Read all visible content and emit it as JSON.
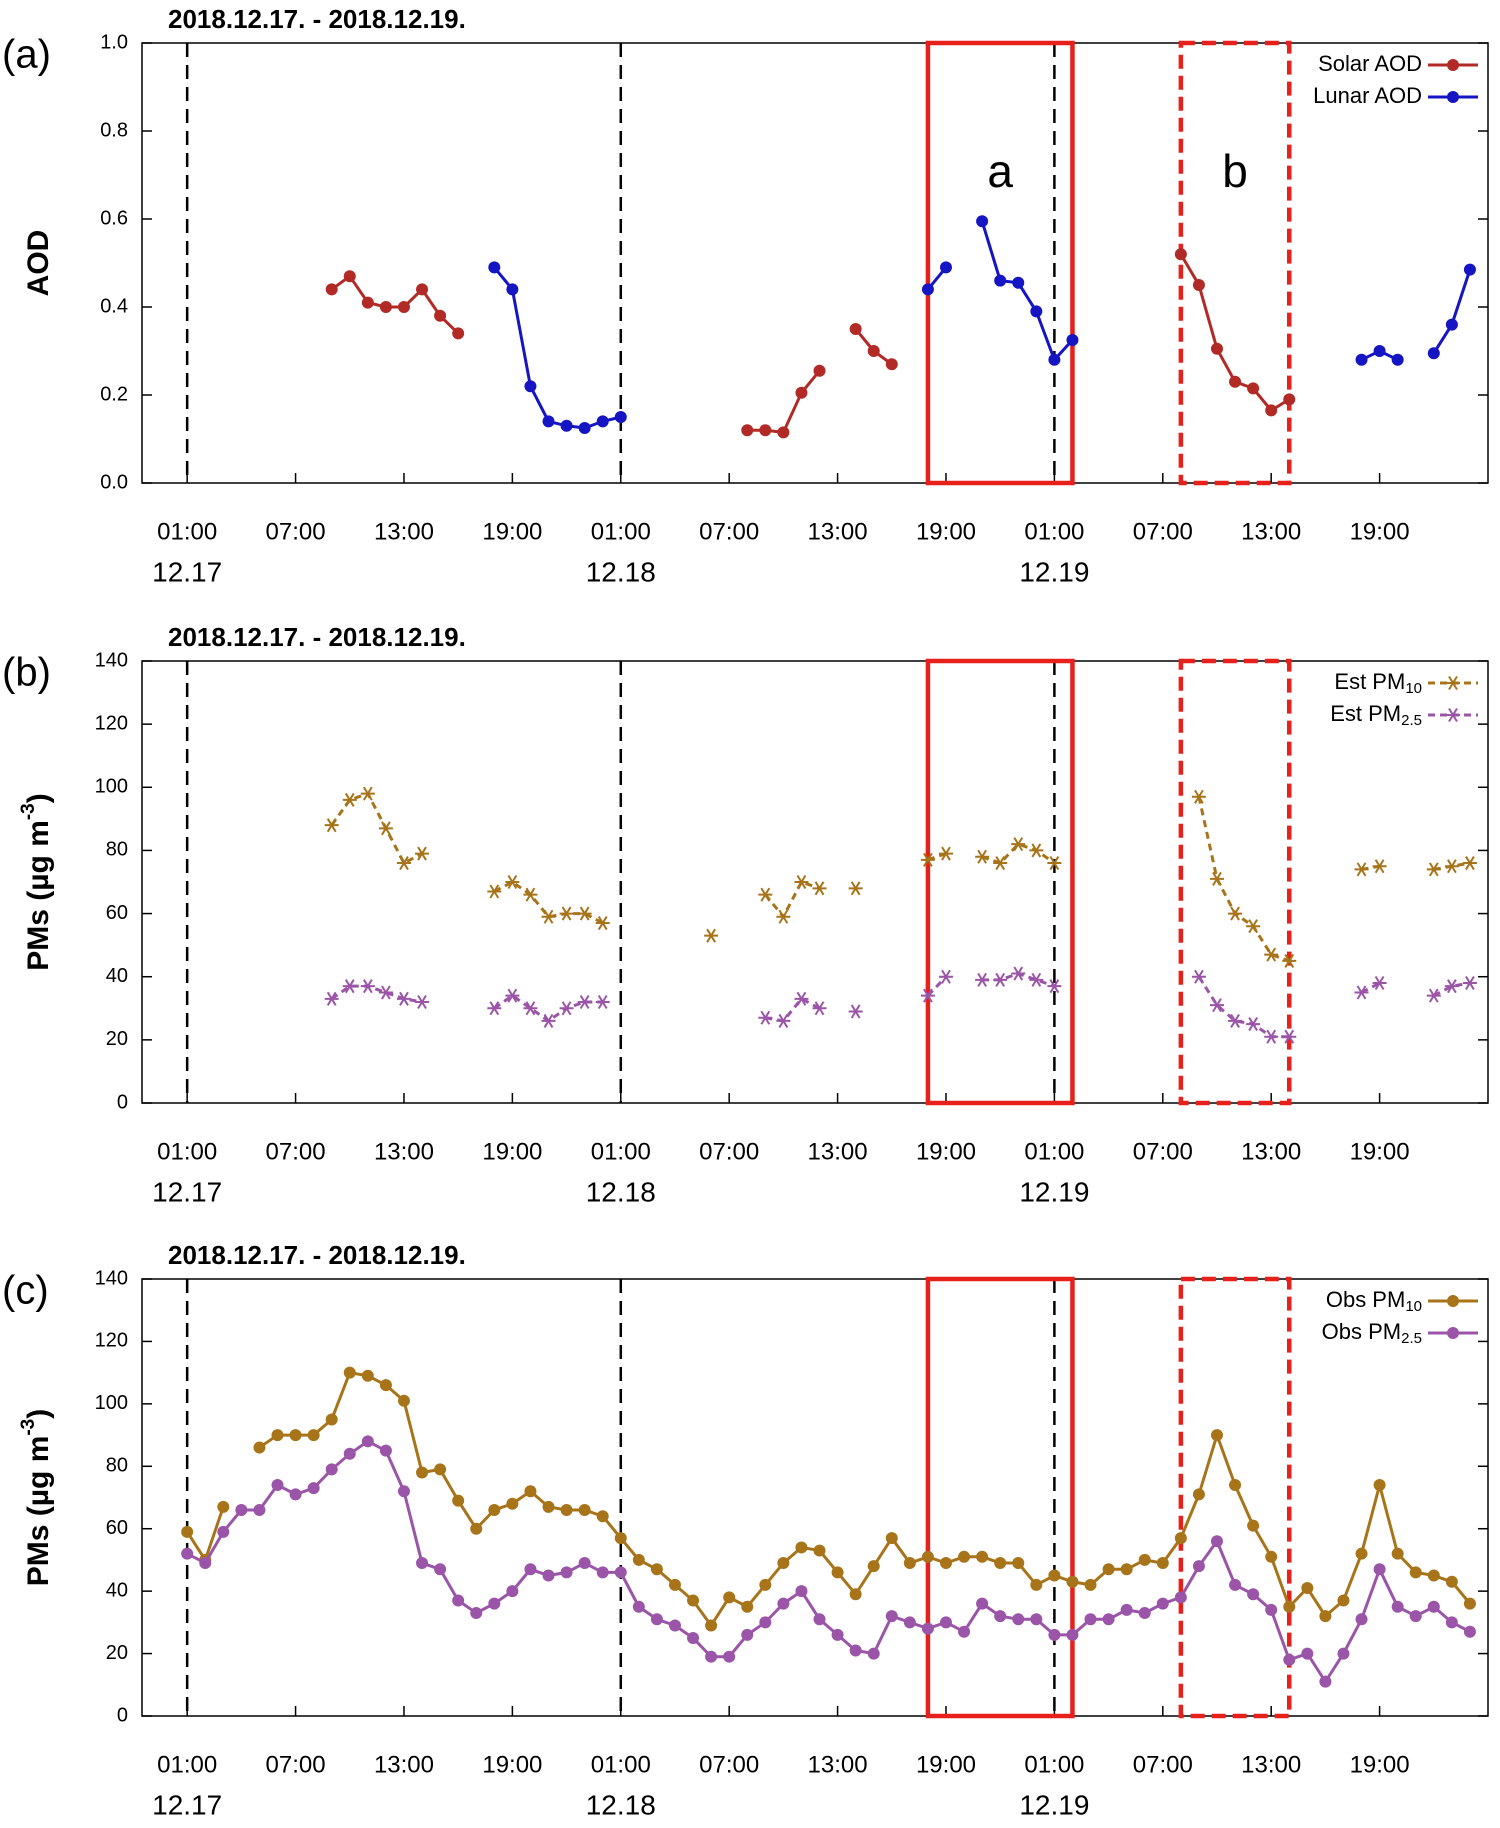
{
  "chart_data": [
    {
      "type": "line",
      "panel_label": "(a)",
      "title": "2018.12.17. - 2018.12.19.",
      "y_label": "AOD",
      "xlim": [
        -1.5,
        73
      ],
      "ylim": [
        0,
        1
      ],
      "yticks": [
        {
          "value": 0,
          "label": "0.0"
        },
        0.2,
        0.4,
        0.6,
        0.8,
        {
          "value": 1,
          "label": "1.0"
        }
      ],
      "xticks": [
        {
          "value": 1,
          "label": "01:00"
        },
        {
          "value": 7,
          "label": "07:00"
        },
        {
          "value": 13,
          "label": "13:00"
        },
        {
          "value": 19,
          "label": "19:00"
        },
        {
          "value": 25,
          "label": "01:00"
        },
        {
          "value": 31,
          "label": "07:00"
        },
        {
          "value": 37,
          "label": "13:00"
        },
        {
          "value": 43,
          "label": "19:00"
        },
        {
          "value": 49,
          "label": "01:00"
        },
        {
          "value": 55,
          "label": "07:00"
        },
        {
          "value": 61,
          "label": "13:00"
        },
        {
          "value": 67,
          "label": "19:00"
        }
      ],
      "date_ticks": [
        {
          "value": 1,
          "label": "12.17"
        },
        {
          "value": 25,
          "label": "12.18"
        },
        {
          "value": 49,
          "label": "12.19"
        }
      ],
      "boxes": [
        {
          "x": [
            42,
            50
          ],
          "style": "solid",
          "label": "a"
        },
        {
          "x": [
            56,
            62
          ],
          "style": "dashed",
          "label": "b"
        }
      ],
      "legend": "upper right",
      "series": [
        {
          "name": "Solar AOD",
          "color": "#b22a26",
          "marker": "circle",
          "dashed": false,
          "x": [
            9,
            10,
            11,
            12,
            13,
            14,
            15,
            16,
            17,
            32,
            33,
            34,
            35,
            36,
            37,
            38,
            39,
            40,
            41,
            56,
            57,
            58,
            59,
            60,
            61,
            62
          ],
          "values": [
            0.44,
            0.47,
            0.41,
            0.4,
            0.4,
            0.44,
            0.38,
            0.34,
            null,
            0.12,
            0.12,
            0.115,
            0.205,
            0.255,
            null,
            0.35,
            0.3,
            0.27,
            null,
            0.52,
            0.45,
            0.305,
            0.23,
            0.215,
            0.165,
            0.19
          ]
        },
        {
          "name": "Lunar AOD",
          "color": "#1515c4",
          "marker": "circle",
          "dashed": false,
          "x": [
            18,
            19,
            20,
            21,
            22,
            23,
            24,
            25,
            26,
            42,
            43,
            44,
            45,
            46,
            47,
            48,
            49,
            50,
            51,
            66,
            67,
            68,
            69,
            70,
            71,
            72
          ],
          "values": [
            0.49,
            0.44,
            0.22,
            0.14,
            0.13,
            0.125,
            0.14,
            0.15,
            null,
            0.44,
            0.49,
            null,
            0.595,
            0.46,
            0.455,
            0.39,
            0.28,
            0.325,
            null,
            0.28,
            0.3,
            0.28,
            null,
            0.295,
            0.36,
            0.485
          ]
        }
      ]
    },
    {
      "type": "line",
      "panel_label": "(b)",
      "title": "2018.12.17. - 2018.12.19.",
      "y_label": {
        "text": "PMs (µg m",
        "sup": "-3",
        "end": ")"
      },
      "xlim": [
        -1.5,
        73
      ],
      "ylim": [
        0,
        140
      ],
      "yticks": [
        0,
        20,
        40,
        60,
        80,
        100,
        120,
        140
      ],
      "xticks": [
        {
          "value": 1,
          "label": "01:00"
        },
        {
          "value": 7,
          "label": "07:00"
        },
        {
          "value": 13,
          "label": "13:00"
        },
        {
          "value": 19,
          "label": "19:00"
        },
        {
          "value": 25,
          "label": "01:00"
        },
        {
          "value": 31,
          "label": "07:00"
        },
        {
          "value": 37,
          "label": "13:00"
        },
        {
          "value": 43,
          "label": "19:00"
        },
        {
          "value": 49,
          "label": "01:00"
        },
        {
          "value": 55,
          "label": "07:00"
        },
        {
          "value": 61,
          "label": "13:00"
        },
        {
          "value": 67,
          "label": "19:00"
        }
      ],
      "date_ticks": [
        {
          "value": 1,
          "label": "12.17"
        },
        {
          "value": 25,
          "label": "12.18"
        },
        {
          "value": 49,
          "label": "12.19"
        }
      ],
      "boxes": [
        {
          "x": [
            42,
            50
          ],
          "style": "solid"
        },
        {
          "x": [
            56,
            62
          ],
          "style": "dashed"
        }
      ],
      "legend": "upper right",
      "series": [
        {
          "name": "Est PM",
          "name_sub": "10",
          "color": "#a8741a",
          "marker": "asterisk",
          "dashed": true,
          "x": [
            9,
            10,
            11,
            12,
            13,
            14,
            15,
            18,
            19,
            20,
            21,
            22,
            23,
            24,
            25,
            30,
            31,
            33,
            34,
            35,
            36,
            37,
            38,
            39,
            42,
            43,
            44,
            45,
            46,
            47,
            48,
            49,
            50,
            57,
            58,
            59,
            60,
            61,
            62,
            63,
            66,
            67,
            68,
            70,
            71,
            72
          ],
          "values": [
            88,
            96,
            98,
            87,
            76,
            79,
            null,
            67,
            70,
            66,
            59,
            60,
            60,
            57,
            null,
            53,
            null,
            66,
            59,
            70,
            68,
            null,
            68,
            null,
            77,
            79,
            null,
            78,
            76,
            82,
            80,
            76,
            null,
            97,
            71,
            60,
            56,
            47,
            45,
            null,
            74,
            75,
            null,
            74,
            75,
            76
          ]
        },
        {
          "name": "Est PM",
          "name_sub": "2.5",
          "color": "#9b55a8",
          "marker": "asterisk",
          "dashed": true,
          "x": [
            9,
            10,
            11,
            12,
            13,
            14,
            15,
            18,
            19,
            20,
            21,
            22,
            23,
            24,
            25,
            30,
            31,
            33,
            34,
            35,
            36,
            37,
            38,
            39,
            42,
            43,
            44,
            45,
            46,
            47,
            48,
            49,
            50,
            57,
            58,
            59,
            60,
            61,
            62,
            63,
            66,
            67,
            68,
            70,
            71,
            72
          ],
          "values": [
            33,
            37,
            37,
            35,
            33,
            32,
            null,
            30,
            34,
            30,
            26,
            30,
            32,
            32,
            null,
            null,
            null,
            27,
            26,
            33,
            30,
            null,
            29,
            null,
            34,
            40,
            null,
            39,
            39,
            41,
            39,
            37,
            null,
            40,
            31,
            26,
            25,
            21,
            21,
            null,
            35,
            38,
            null,
            34,
            37,
            38
          ]
        }
      ]
    },
    {
      "type": "line",
      "panel_label": "(c)",
      "title": "2018.12.17. - 2018.12.19.",
      "y_label": {
        "text": "PMs (µg m",
        "sup": "-3",
        "end": ")"
      },
      "xlim": [
        -1.5,
        73
      ],
      "ylim": [
        0,
        140
      ],
      "yticks": [
        0,
        20,
        40,
        60,
        80,
        100,
        120,
        140
      ],
      "xticks": [
        {
          "value": 1,
          "label": "01:00"
        },
        {
          "value": 7,
          "label": "07:00"
        },
        {
          "value": 13,
          "label": "13:00"
        },
        {
          "value": 19,
          "label": "19:00"
        },
        {
          "value": 25,
          "label": "01:00"
        },
        {
          "value": 31,
          "label": "07:00"
        },
        {
          "value": 37,
          "label": "13:00"
        },
        {
          "value": 43,
          "label": "19:00"
        },
        {
          "value": 49,
          "label": "01:00"
        },
        {
          "value": 55,
          "label": "07:00"
        },
        {
          "value": 61,
          "label": "13:00"
        },
        {
          "value": 67,
          "label": "19:00"
        }
      ],
      "date_ticks": [
        {
          "value": 1,
          "label": "12.17"
        },
        {
          "value": 25,
          "label": "12.18"
        },
        {
          "value": 49,
          "label": "12.19"
        }
      ],
      "boxes": [
        {
          "x": [
            42,
            50
          ],
          "style": "solid"
        },
        {
          "x": [
            56,
            62
          ],
          "style": "dashed"
        }
      ],
      "legend": "upper right",
      "series": [
        {
          "name": "Obs PM",
          "name_sub": "10",
          "color": "#a8741a",
          "marker": "circle",
          "dashed": false,
          "x": [
            1,
            2,
            3,
            4,
            5,
            6,
            7,
            8,
            9,
            10,
            11,
            12,
            13,
            14,
            15,
            16,
            17,
            18,
            19,
            20,
            21,
            22,
            23,
            24,
            25,
            26,
            27,
            28,
            29,
            30,
            31,
            32,
            33,
            34,
            35,
            36,
            37,
            38,
            39,
            40,
            41,
            42,
            43,
            44,
            45,
            46,
            47,
            48,
            49,
            50,
            51,
            52,
            53,
            54,
            55,
            56,
            57,
            58,
            59,
            60,
            61,
            62,
            63,
            64,
            65,
            66,
            67,
            68,
            69,
            70,
            71,
            72
          ],
          "values": [
            59,
            50,
            67,
            null,
            86,
            90,
            90,
            90,
            95,
            110,
            109,
            106,
            101,
            78,
            79,
            69,
            60,
            66,
            68,
            72,
            67,
            66,
            66,
            64,
            57,
            50,
            47,
            42,
            37,
            29,
            38,
            35,
            42,
            49,
            54,
            53,
            46,
            39,
            48,
            57,
            49,
            51,
            49,
            51,
            51,
            49,
            49,
            42,
            45,
            43,
            42,
            47,
            47,
            50,
            49,
            57,
            71,
            90,
            74,
            61,
            51,
            35,
            41,
            32,
            37,
            52,
            74,
            52,
            46,
            45,
            43,
            36
          ]
        },
        {
          "name": "Obs PM",
          "name_sub": "2.5",
          "color": "#9b55a8",
          "marker": "circle",
          "dashed": false,
          "x": [
            1,
            2,
            3,
            4,
            5,
            6,
            7,
            8,
            9,
            10,
            11,
            12,
            13,
            14,
            15,
            16,
            17,
            18,
            19,
            20,
            21,
            22,
            23,
            24,
            25,
            26,
            27,
            28,
            29,
            30,
            31,
            32,
            33,
            34,
            35,
            36,
            37,
            38,
            39,
            40,
            41,
            42,
            43,
            44,
            45,
            46,
            47,
            48,
            49,
            50,
            51,
            52,
            53,
            54,
            55,
            56,
            57,
            58,
            59,
            60,
            61,
            62,
            63,
            64,
            65,
            66,
            67,
            68,
            69,
            70,
            71,
            72
          ],
          "values": [
            52,
            49,
            59,
            66,
            66,
            74,
            71,
            73,
            79,
            84,
            88,
            85,
            72,
            49,
            47,
            37,
            33,
            36,
            40,
            47,
            45,
            46,
            49,
            46,
            46,
            35,
            31,
            29,
            25,
            19,
            19,
            26,
            30,
            36,
            40,
            31,
            26,
            21,
            20,
            32,
            30,
            28,
            30,
            27,
            36,
            32,
            31,
            31,
            26,
            26,
            31,
            31,
            34,
            33,
            36,
            38,
            48,
            56,
            42,
            39,
            34,
            18,
            20,
            11,
            20,
            31,
            47,
            35,
            32,
            35,
            30,
            27
          ]
        }
      ]
    }
  ]
}
